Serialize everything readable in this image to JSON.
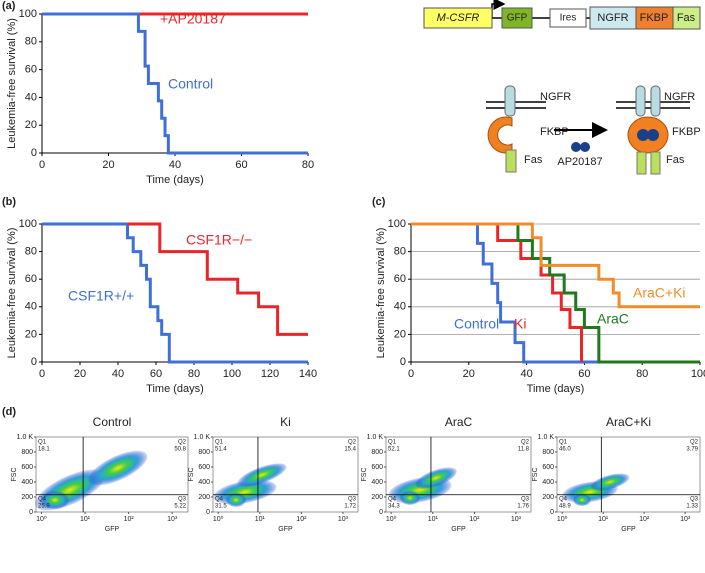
{
  "panel_labels": [
    "(a)",
    "(b)",
    "(c)",
    "(d)"
  ],
  "diagram": {
    "construct": [
      "M-CSFR",
      "GFP",
      "Ires",
      "NGFR",
      "FKBP",
      "Fas"
    ],
    "left": {
      "ngfr": "NGFR",
      "fkbp": "FKBP",
      "fas": "Fas"
    },
    "drug": "AP20187",
    "right": {
      "ngfr": "NGFR",
      "fkbp": "FKBP",
      "fas": "Fas"
    }
  },
  "chart_data": [
    {
      "type": "line",
      "step": true,
      "grid": false,
      "xlabel": "Time (days)",
      "ylabel": "Leukemia-free survival (%)",
      "xlim": [
        0,
        80
      ],
      "xticks": [
        0,
        20,
        40,
        60,
        80
      ],
      "ylim": [
        0,
        100
      ],
      "yticks": [
        0,
        20,
        40,
        60,
        80,
        100
      ],
      "series": [
        {
          "name": "+AP20187",
          "color": "#e8262a",
          "x": [
            0,
            80
          ],
          "values": [
            100,
            100
          ]
        },
        {
          "name": "Control",
          "color": "#3f6fd8",
          "x": [
            0,
            29,
            29,
            31,
            31,
            32,
            32,
            35,
            35,
            36,
            36,
            37,
            37,
            38,
            38,
            80
          ],
          "values": [
            100,
            100,
            87.5,
            87.5,
            62.5,
            62.5,
            50,
            50,
            37.5,
            37.5,
            25,
            25,
            12.5,
            12.5,
            0,
            0
          ]
        }
      ]
    },
    {
      "type": "line",
      "step": true,
      "grid": false,
      "xlabel": "Time (days)",
      "ylabel": "Leukemia-free survival (%)",
      "xlim": [
        0,
        140
      ],
      "xticks": [
        0,
        20,
        40,
        60,
        80,
        100,
        120,
        140
      ],
      "ylim": [
        0,
        100
      ],
      "yticks": [
        0,
        20,
        40,
        60,
        80,
        100
      ],
      "series": [
        {
          "name": "CSF1R+/+",
          "color": "#3f6fd8",
          "x": [
            0,
            45,
            45,
            48,
            48,
            52,
            52,
            55,
            55,
            57,
            57,
            61,
            61,
            63,
            63,
            67,
            67,
            140
          ],
          "values": [
            100,
            100,
            90,
            90,
            80,
            80,
            70,
            70,
            60,
            60,
            40,
            40,
            30,
            30,
            20,
            20,
            0,
            0
          ]
        },
        {
          "name": "CSF1R−/−",
          "color": "#e8262a",
          "x": [
            45,
            62,
            62,
            87,
            87,
            103,
            103,
            114,
            114,
            124,
            124,
            140
          ],
          "values": [
            100,
            100,
            80,
            80,
            60,
            60,
            50,
            50,
            40,
            40,
            20,
            20
          ]
        }
      ]
    },
    {
      "type": "line",
      "step": true,
      "grid": true,
      "xlabel": "Time (days)",
      "ylabel": "Leukemia-free survival (%)",
      "xlim": [
        0,
        100
      ],
      "xticks": [
        0,
        20,
        40,
        60,
        80,
        100
      ],
      "ylim": [
        0,
        100
      ],
      "yticks": [
        0,
        20,
        40,
        60,
        80,
        100
      ],
      "series": [
        {
          "name": "Control",
          "color": "#3f6fd8",
          "x": [
            0,
            23,
            23,
            25,
            25,
            28,
            28,
            30,
            30,
            31,
            31,
            36,
            36,
            39,
            39,
            100
          ],
          "values": [
            100,
            100,
            86,
            86,
            71,
            71,
            57,
            57,
            43,
            43,
            29,
            29,
            14,
            14,
            0,
            0
          ]
        },
        {
          "name": "Ki",
          "color": "#e8262a",
          "x": [
            0,
            30,
            30,
            38,
            38,
            45,
            45,
            49,
            49,
            52,
            52,
            55,
            55,
            59,
            59
          ],
          "values": [
            100,
            100,
            88,
            88,
            75,
            75,
            63,
            63,
            50,
            50,
            38,
            38,
            25,
            25,
            0
          ]
        },
        {
          "name": "AraC",
          "color": "#1f7a1f",
          "x": [
            0,
            37,
            37,
            42,
            42,
            48,
            48,
            53,
            53,
            57,
            57,
            60,
            60,
            65,
            65,
            100
          ],
          "values": [
            100,
            100,
            88,
            88,
            75,
            75,
            63,
            63,
            50,
            50,
            38,
            38,
            25,
            25,
            0,
            0
          ]
        },
        {
          "name": "AraC+Ki",
          "color": "#f28c28",
          "x": [
            0,
            42,
            42,
            45,
            45,
            65,
            65,
            70,
            70,
            72,
            72,
            100
          ],
          "values": [
            100,
            100,
            90,
            90,
            70,
            70,
            60,
            60,
            50,
            50,
            40,
            40
          ]
        }
      ]
    },
    {
      "type": "flow",
      "title": "Control",
      "xlabel": "GFP",
      "ylabel": "FSC",
      "log_x": true,
      "xlim": [
        0.75,
        2300
      ],
      "xticks": [
        {
          "value": 1,
          "label": "10⁰"
        },
        {
          "value": 10,
          "label": "10¹"
        },
        {
          "value": 100,
          "label": "10²"
        },
        {
          "value": 1000,
          "label": "10³"
        }
      ],
      "ylim": [
        0,
        1000
      ],
      "yticks": [
        0,
        200,
        400,
        600,
        800,
        {
          "value": 1000,
          "label": "1.0 K"
        }
      ],
      "quadrants": {
        "names": [
          "Q1",
          "Q2",
          "Q3",
          "Q4"
        ],
        "values": [
          18.1,
          50.8,
          5.22,
          25.9
        ]
      }
    },
    {
      "type": "flow",
      "title": "Ki",
      "xlabel": "GFP",
      "ylabel": "FSC",
      "log_x": true,
      "xlim": [
        0.75,
        2300
      ],
      "xticks": [
        {
          "value": 1,
          "label": "10⁰"
        },
        {
          "value": 10,
          "label": "10¹"
        },
        {
          "value": 100,
          "label": "10²"
        },
        {
          "value": 1000,
          "label": "10³"
        }
      ],
      "ylim": [
        0,
        1000
      ],
      "yticks": [
        0,
        200,
        400,
        600,
        800,
        {
          "value": 1000,
          "label": "1.0 K"
        }
      ],
      "quadrants": {
        "names": [
          "Q1",
          "Q2",
          "Q3",
          "Q4"
        ],
        "values": [
          51.4,
          15.4,
          1.72,
          31.5
        ]
      }
    },
    {
      "type": "flow",
      "title": "AraC",
      "xlabel": "GFP",
      "ylabel": "FSC",
      "log_x": true,
      "xlim": [
        0.75,
        2300
      ],
      "xticks": [
        {
          "value": 1,
          "label": "10⁰"
        },
        {
          "value": 10,
          "label": "10¹"
        },
        {
          "value": 100,
          "label": "10²"
        },
        {
          "value": 1000,
          "label": "10³"
        }
      ],
      "ylim": [
        0,
        1000
      ],
      "yticks": [
        0,
        200,
        400,
        600,
        800,
        {
          "value": 1000,
          "label": "1.0 K"
        }
      ],
      "quadrants": {
        "names": [
          "Q1",
          "Q2",
          "Q3",
          "Q4"
        ],
        "values": [
          52.1,
          11.8,
          1.76,
          34.3
        ]
      }
    },
    {
      "type": "flow",
      "title": "AraC+Ki",
      "xlabel": "GFP",
      "ylabel": "FSC",
      "log_x": true,
      "xlim": [
        0.75,
        2300
      ],
      "xticks": [
        {
          "value": 1,
          "label": "10⁰"
        },
        {
          "value": 10,
          "label": "10¹"
        },
        {
          "value": 100,
          "label": "10²"
        },
        {
          "value": 1000,
          "label": "10³"
        }
      ],
      "ylim": [
        0,
        1000
      ],
      "yticks": [
        0,
        200,
        400,
        600,
        800,
        {
          "value": 1000,
          "label": "1.0 K"
        }
      ],
      "quadrants": {
        "names": [
          "Q1",
          "Q2",
          "Q3",
          "Q4"
        ],
        "values": [
          46,
          3.79,
          1.33,
          48.9
        ],
        "value_labels": [
          "46.0",
          "3.79",
          "1.33",
          "48.9"
        ]
      }
    }
  ]
}
